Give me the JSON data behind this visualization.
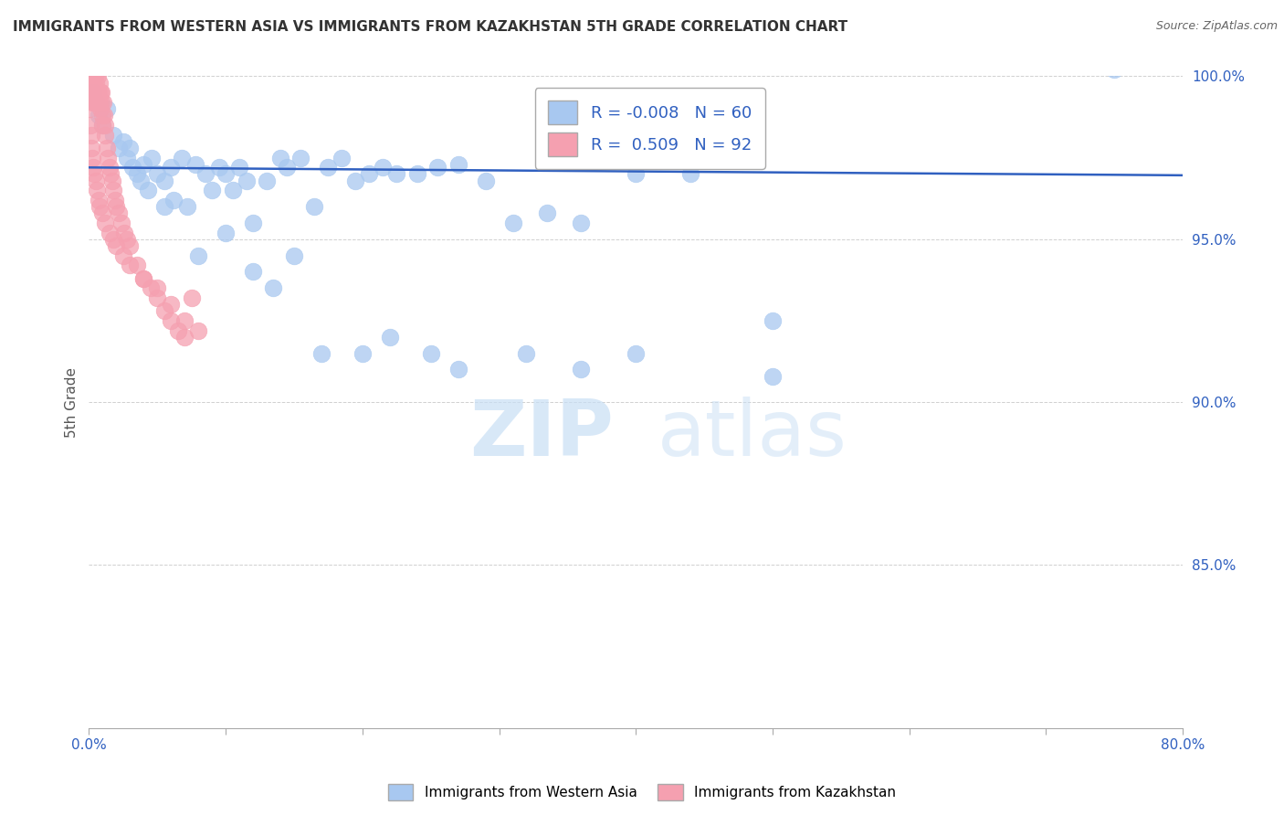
{
  "title": "IMMIGRANTS FROM WESTERN ASIA VS IMMIGRANTS FROM KAZAKHSTAN 5TH GRADE CORRELATION CHART",
  "source": "Source: ZipAtlas.com",
  "ylabel": "5th Grade",
  "xlim": [
    0.0,
    80.0
  ],
  "ylim": [
    80.0,
    100.0
  ],
  "yticks": [
    85,
    90,
    95,
    100
  ],
  "blue_R": -0.008,
  "blue_N": 60,
  "pink_R": 0.509,
  "pink_N": 92,
  "blue_color": "#a8c8f0",
  "pink_color": "#f5a0b0",
  "trendline_color": "#3060c0",
  "watermark_zip": "ZIP",
  "watermark_atlas": "atlas",
  "blue_scatter_x": [
    0.3,
    0.5,
    0.7,
    1.0,
    1.3,
    1.8,
    2.2,
    2.5,
    2.8,
    3.0,
    3.2,
    3.5,
    3.8,
    4.0,
    4.3,
    4.6,
    5.0,
    5.5,
    6.0,
    6.2,
    6.8,
    7.2,
    7.8,
    8.5,
    9.0,
    9.5,
    10.0,
    10.5,
    11.0,
    11.5,
    12.0,
    13.0,
    14.0,
    14.5,
    15.5,
    16.5,
    17.5,
    18.5,
    19.5,
    20.5,
    21.5,
    22.5,
    24.0,
    25.5,
    27.0,
    29.0,
    31.0,
    33.5,
    36.0,
    40.0,
    44.0,
    50.0,
    75.0
  ],
  "blue_scatter_y": [
    99.5,
    99.2,
    98.8,
    98.5,
    99.0,
    98.2,
    97.8,
    98.0,
    97.5,
    97.8,
    97.2,
    97.0,
    96.8,
    97.3,
    96.5,
    97.5,
    97.0,
    96.8,
    97.2,
    96.2,
    97.5,
    96.0,
    97.3,
    97.0,
    96.5,
    97.2,
    97.0,
    96.5,
    97.2,
    96.8,
    95.5,
    96.8,
    97.5,
    97.2,
    97.5,
    96.0,
    97.2,
    97.5,
    96.8,
    97.0,
    97.2,
    97.0,
    97.0,
    97.2,
    97.3,
    96.8,
    95.5,
    95.8,
    95.5,
    97.0,
    97.0,
    92.5,
    100.2
  ],
  "blue_scatter_x2": [
    5.5,
    8.0,
    10.0,
    12.0,
    13.5,
    15.0,
    17.0,
    20.0,
    22.0,
    25.0,
    27.0,
    32.0,
    36.0,
    40.0,
    50.0
  ],
  "blue_scatter_y2": [
    96.0,
    94.5,
    95.2,
    94.0,
    93.5,
    94.5,
    91.5,
    91.5,
    92.0,
    91.5,
    91.0,
    91.5,
    91.0,
    91.5,
    90.8
  ],
  "pink_scatter_x": [
    0.05,
    0.08,
    0.1,
    0.12,
    0.15,
    0.18,
    0.2,
    0.22,
    0.25,
    0.28,
    0.3,
    0.33,
    0.36,
    0.4,
    0.43,
    0.46,
    0.5,
    0.53,
    0.56,
    0.6,
    0.63,
    0.66,
    0.7,
    0.73,
    0.76,
    0.8,
    0.83,
    0.86,
    0.9,
    0.93,
    0.96,
    1.0,
    1.05,
    1.1,
    1.15,
    1.2,
    1.3,
    1.4,
    1.5,
    1.6,
    1.7,
    1.8,
    1.9,
    2.0,
    2.2,
    2.4,
    2.6,
    2.8,
    3.0,
    3.5,
    4.0,
    4.5,
    5.0,
    5.5,
    6.0,
    6.5,
    7.0
  ],
  "pink_scatter_y": [
    100.0,
    99.8,
    100.0,
    99.5,
    99.8,
    100.0,
    99.5,
    99.8,
    99.2,
    100.0,
    99.5,
    99.8,
    99.2,
    99.5,
    100.0,
    99.2,
    99.5,
    99.8,
    99.2,
    99.5,
    100.0,
    99.5,
    99.2,
    99.5,
    99.8,
    99.2,
    99.5,
    99.0,
    99.2,
    99.5,
    98.8,
    98.5,
    99.2,
    98.8,
    98.5,
    98.2,
    97.8,
    97.5,
    97.2,
    97.0,
    96.8,
    96.5,
    96.2,
    96.0,
    95.8,
    95.5,
    95.2,
    95.0,
    94.8,
    94.2,
    93.8,
    93.5,
    93.2,
    92.8,
    92.5,
    92.2,
    92.0
  ],
  "pink_scatter_x2": [
    0.05,
    0.1,
    0.15,
    0.2,
    0.25,
    0.3,
    0.4,
    0.5,
    0.6,
    0.7,
    0.8,
    1.0,
    1.2,
    1.5,
    1.8,
    2.0,
    2.5,
    3.0,
    4.0,
    5.0,
    6.0,
    7.0,
    7.5,
    8.0
  ],
  "pink_scatter_y2": [
    99.0,
    98.5,
    98.2,
    97.8,
    97.5,
    97.2,
    97.0,
    96.8,
    96.5,
    96.2,
    96.0,
    95.8,
    95.5,
    95.2,
    95.0,
    94.8,
    94.5,
    94.2,
    93.8,
    93.5,
    93.0,
    92.5,
    93.2,
    92.2
  ]
}
